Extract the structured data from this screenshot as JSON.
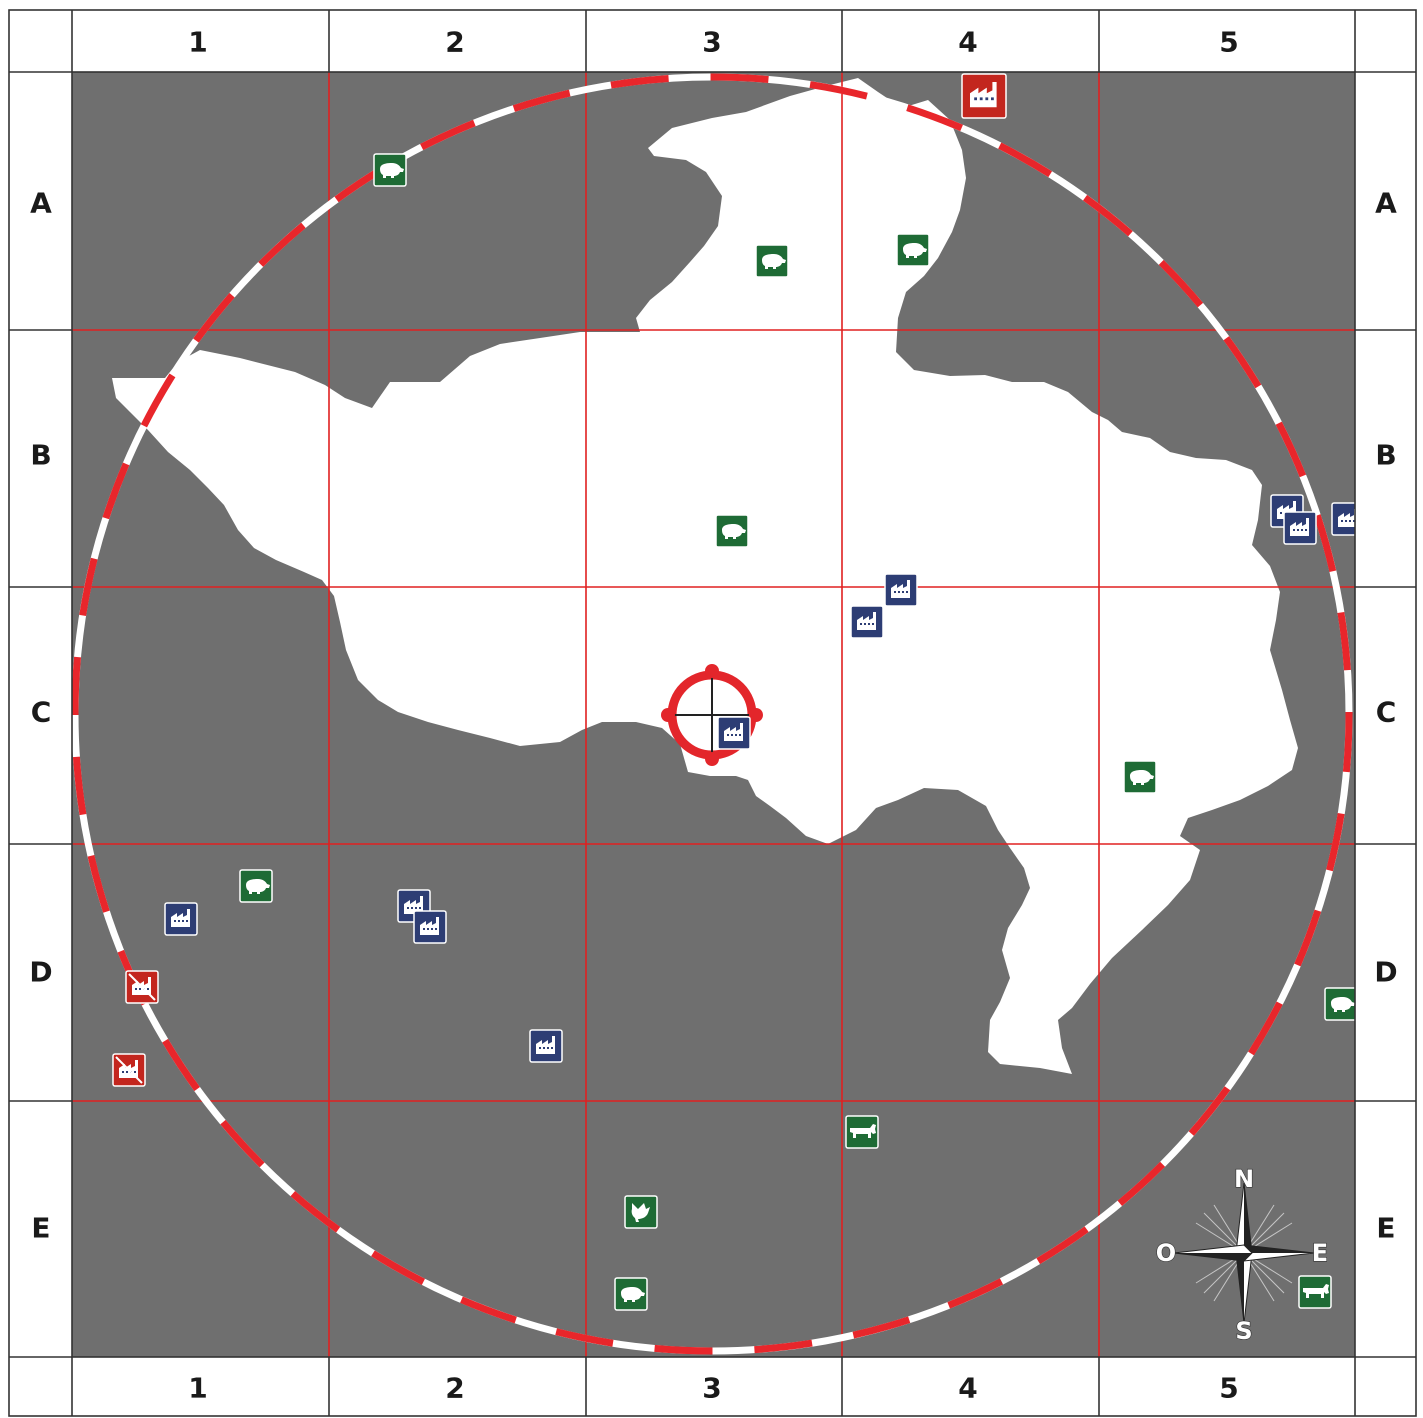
{
  "map": {
    "columns": [
      "1",
      "2",
      "3",
      "4",
      "5"
    ],
    "rows": [
      "A",
      "B",
      "C",
      "D",
      "E"
    ],
    "colors": {
      "land": "#6f6f6f",
      "region": "#ffffff",
      "grid_line": "#e02020",
      "ring_red": "#e8262b",
      "ring_white": "#ffffff",
      "target": "#e3262b",
      "farm_icon": "#1e6b35",
      "factory_icon": "#2d3d74",
      "hazard_icon": "#c3261e"
    },
    "compass": {
      "north": "N",
      "south": "S",
      "east": "E",
      "west": "O"
    },
    "target": {
      "cell": "C3"
    },
    "markers": [
      {
        "type": "pig-farm",
        "cell": "A2"
      },
      {
        "type": "pig-farm",
        "cell": "A3"
      },
      {
        "type": "pig-farm",
        "cell": "A4"
      },
      {
        "type": "factory-hazard",
        "cell": "A4"
      },
      {
        "type": "pig-farm",
        "cell": "B3"
      },
      {
        "type": "factory",
        "cell": "B5"
      },
      {
        "type": "factory",
        "cell": "B5"
      },
      {
        "type": "factory",
        "cell": "B5"
      },
      {
        "type": "factory",
        "cell": "C4"
      },
      {
        "type": "factory",
        "cell": "C4"
      },
      {
        "type": "factory",
        "cell": "C3"
      },
      {
        "type": "pig-farm",
        "cell": "C5"
      },
      {
        "type": "pig-farm",
        "cell": "D1"
      },
      {
        "type": "factory",
        "cell": "D1"
      },
      {
        "type": "hazard",
        "cell": "D1"
      },
      {
        "type": "hazard",
        "cell": "D1"
      },
      {
        "type": "factory",
        "cell": "D2"
      },
      {
        "type": "factory",
        "cell": "D2"
      },
      {
        "type": "factory",
        "cell": "D2"
      },
      {
        "type": "pig-farm",
        "cell": "D5"
      },
      {
        "type": "cattle-farm",
        "cell": "E4"
      },
      {
        "type": "poultry-farm",
        "cell": "E3"
      },
      {
        "type": "pig-farm",
        "cell": "E3"
      },
      {
        "type": "cattle-farm",
        "cell": "E5"
      }
    ]
  }
}
